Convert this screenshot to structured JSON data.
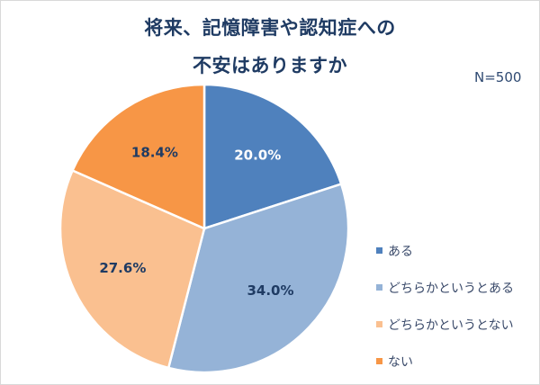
{
  "title": {
    "line1": "将来、記憶障害や認知症への",
    "line2": "不安はありますか"
  },
  "sample_size": "N=500",
  "colors": {
    "aru": "#4f81bd",
    "dochiraka_aru": "#95b3d7",
    "dochiraka_nai": "#fac090",
    "nai": "#f79646",
    "title": "#1f3b63"
  },
  "legend": [
    {
      "label": "ある",
      "color": "#4f81bd"
    },
    {
      "label": "どちらかというとある",
      "color": "#95b3d7"
    },
    {
      "label": "どちらかというとない",
      "color": "#fac090"
    },
    {
      "label": "ない",
      "color": "#f79646"
    }
  ],
  "data_labels": [
    "20.0%",
    "34.0%",
    "27.6%",
    "18.4%"
  ],
  "chart_data": {
    "type": "pie",
    "title": "将来、記憶障害や認知症への不安はありますか",
    "annotation": "N=500",
    "categories": [
      "ある",
      "どちらかというとある",
      "どちらかというとない",
      "ない"
    ],
    "values": [
      20.0,
      34.0,
      27.6,
      18.4
    ],
    "unit": "%",
    "colors": [
      "#4f81bd",
      "#95b3d7",
      "#fac090",
      "#f79646"
    ],
    "start_angle": "12 o'clock",
    "direction": "clockwise",
    "legend_position": "right"
  }
}
